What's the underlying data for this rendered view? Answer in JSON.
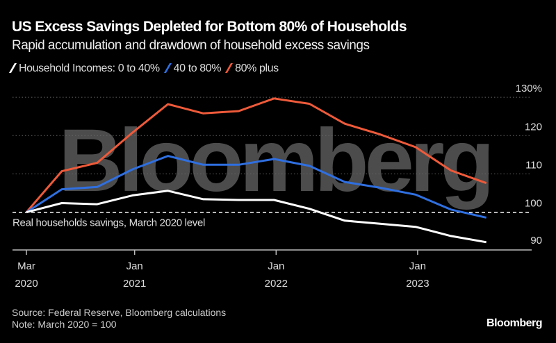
{
  "title": "US Excess Savings Depleted for Bottom 80% of Households",
  "subtitle": "Rapid accumulation and drawdown of household excess savings",
  "legend": [
    "Household Incomes: 0 to 40%",
    "40 to 80%",
    "80% plus"
  ],
  "watermark": "Bloomberg",
  "reference_label": "Real households savings, March 2020 level",
  "source": "Source: Federal Reserve, Bloomberg calculations",
  "note": "Note: March 2020 = 100",
  "logo": "Bloomberg",
  "chart_data": {
    "type": "line",
    "x": [
      "2020-03",
      "2020-06",
      "2020-09",
      "2020-12",
      "2021-03",
      "2021-06",
      "2021-09",
      "2021-12",
      "2022-03",
      "2022-06",
      "2022-09",
      "2022-12",
      "2023-03",
      "2023-06"
    ],
    "series": [
      {
        "name": "0 to 40%",
        "color": "#ffffff",
        "values": [
          100,
          102.4,
          102.1,
          104.4,
          105.6,
          103.4,
          103.2,
          103.2,
          100.9,
          97.8,
          97.0,
          96.2,
          93.8,
          92.2
        ]
      },
      {
        "name": "40 to 80%",
        "color": "#2f6fe0",
        "values": [
          100,
          106.0,
          106.6,
          111.2,
          114.7,
          112.4,
          112.4,
          113.9,
          112.1,
          107.9,
          106.4,
          104.6,
          100.7,
          98.6
        ]
      },
      {
        "name": "80% plus",
        "color": "#ee5a3a",
        "values": [
          100,
          110.7,
          112.9,
          120.8,
          128.2,
          125.8,
          126.4,
          129.7,
          128.3,
          123.1,
          120.3,
          117.0,
          110.9,
          107.6
        ]
      }
    ],
    "y_ticks": [
      {
        "value": 130,
        "label": "130%"
      },
      {
        "value": 120,
        "label": "120"
      },
      {
        "value": 110,
        "label": "110"
      },
      {
        "value": 100,
        "label": "100"
      },
      {
        "value": 90,
        "label": "90"
      }
    ],
    "x_ticks": [
      {
        "at": "2020-03",
        "label": [
          "Mar",
          "2020"
        ]
      },
      {
        "at": "2020-12",
        "label": [
          "Jan",
          "2021"
        ]
      },
      {
        "at": "2021-12",
        "label": [
          "Jan",
          "2022"
        ]
      },
      {
        "at": "2022-12",
        "label": [
          "Jan",
          "2023"
        ]
      }
    ],
    "ylim": [
      90,
      130
    ],
    "reference_line": 100,
    "grid": true,
    "legend_position": "top-left"
  }
}
